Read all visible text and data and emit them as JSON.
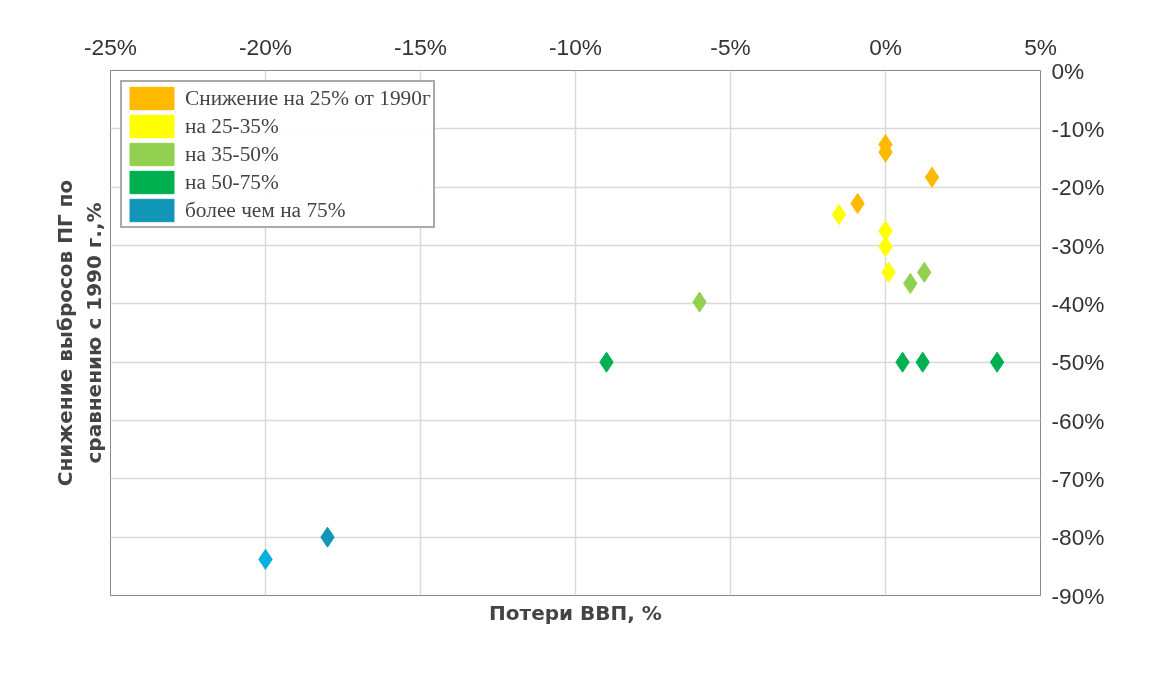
{
  "chart_data": {
    "type": "scatter",
    "xlabel": "Потери ВВП, %",
    "ylabel": "Снижение выбросов ПГ по сравнению с 1990 г.,%",
    "xlim": [
      -25,
      5
    ],
    "ylim": [
      -90,
      0
    ],
    "xticks": [
      {
        "value": -25,
        "label": "-25%"
      },
      {
        "value": -20,
        "label": "-20%"
      },
      {
        "value": -15,
        "label": "-15%"
      },
      {
        "value": -10,
        "label": "-10%"
      },
      {
        "value": -5,
        "label": "-5%"
      },
      {
        "value": 0,
        "label": "0%"
      },
      {
        "value": 5,
        "label": "5%"
      }
    ],
    "yticks": [
      {
        "value": 0,
        "label": "0%"
      },
      {
        "value": -10,
        "label": "-10%"
      },
      {
        "value": -20,
        "label": "-20%"
      },
      {
        "value": -30,
        "label": "-30%"
      },
      {
        "value": -40,
        "label": "-40%"
      },
      {
        "value": -50,
        "label": "-50%"
      },
      {
        "value": -60,
        "label": "-60%"
      },
      {
        "value": -70,
        "label": "-70%"
      },
      {
        "value": -80,
        "label": "-80%"
      },
      {
        "value": -90,
        "label": "-90%"
      }
    ],
    "grid": true,
    "legend": "top left",
    "marker": "diamond",
    "series": [
      {
        "name": "Снижение на 25% от 1990г",
        "color": "#ffb900",
        "x": [
          0,
          0,
          1.5,
          -0.9
        ],
        "values": [
          -12.7,
          -14,
          -18.3,
          -22.8
        ]
      },
      {
        "name": "на 25-35%",
        "color": "#ffff00",
        "x": [
          -1.5,
          0,
          0,
          0.1
        ],
        "values": [
          -24.7,
          -27.5,
          -30.2,
          -34.6
        ]
      },
      {
        "name": "на 35-50%",
        "color": "#92d050",
        "x": [
          0.8,
          1.25,
          -6
        ],
        "values": [
          -36.5,
          -34.6,
          -39.7
        ]
      },
      {
        "name": "на 50-75%",
        "color": "#00b050",
        "x": [
          -9,
          0.55,
          1.2,
          3.6
        ],
        "values": [
          -50,
          -50,
          -50,
          -50
        ]
      },
      {
        "name": "более чем на 75%",
        "color": "#1196b8",
        "colors": [
          "#00b0e0",
          "#1196b8"
        ],
        "x": [
          -20,
          -18
        ],
        "values": [
          -83.8,
          -80
        ]
      }
    ]
  }
}
